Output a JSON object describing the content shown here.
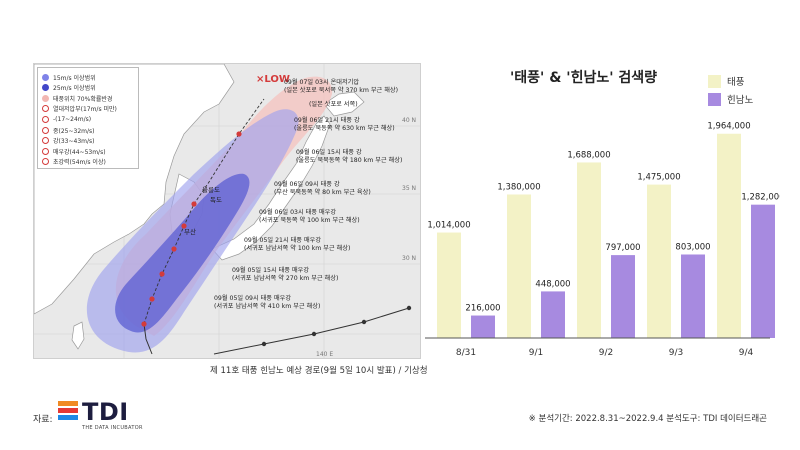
{
  "map": {
    "caption": "제 11호 태풍 힌남노 예상 경로(9월 5일 10시 발표) / 기상청",
    "legend": [
      {
        "label": "15m/s 이상범위",
        "swatch": "circle",
        "color": "#7f83e8"
      },
      {
        "label": "25m/s 이상범위",
        "swatch": "circle",
        "color": "#4247c8"
      },
      {
        "label": "태풍위치 70%확률반경",
        "swatch": "circle",
        "color": "#f2b7b2"
      },
      {
        "label": "열대저압부(17m/s 미만)",
        "swatch": "mark",
        "color": "#d43b3b"
      },
      {
        "label": "-(17~24m/s)",
        "swatch": "mark",
        "color": "#d43b3b"
      },
      {
        "label": "중(25~32m/s)",
        "swatch": "mark",
        "color": "#d43b3b"
      },
      {
        "label": "강(33~43m/s)",
        "swatch": "mark",
        "color": "#d43b3b"
      },
      {
        "label": "매우강(44~53m/s)",
        "swatch": "mark",
        "color": "#d43b3b"
      },
      {
        "label": "초강력(54m/s 이상)",
        "swatch": "mark",
        "color": "#d43b3b"
      }
    ],
    "tdlow_label": "×LOW",
    "place_labels": {
      "ulleungdo": "울릉도",
      "dokdo": "독도",
      "busan": "부산",
      "lat40": "40 N",
      "lat35": "35 N",
      "lat30": "30 N",
      "lon140": "140 E"
    },
    "forecast_points": [
      {
        "line1": "09월 07일 03시 온대저기압",
        "line2": "(일본 삿포로 북서쪽 약 370 km 부근 해상)",
        "strength": ""
      },
      {
        "line1": "(일본 삿포로 서쪽)",
        "line2": "",
        "strength": ""
      },
      {
        "line1": "09월 06일 21시 태풍 강",
        "line2": "(울릉도 북동쪽 약 630 km 부근 해상)",
        "strength": "강"
      },
      {
        "line1": "09월 06일 15시 태풍 강",
        "line2": "(울릉도 북북동쪽 약 180 km 부근 해상)",
        "strength": "강"
      },
      {
        "line1": "09월 06일 09시 태풍 강",
        "line2": "(부산 북북동쪽 약 80 km 부근 육상)",
        "strength": "강"
      },
      {
        "line1": "09월 06일 03시 태풍 매우강",
        "line2": "(서귀포 북동쪽 약 100 km 부근 해상)",
        "strength": "매우강"
      },
      {
        "line1": "09월 05일 21시 태풍 매우강",
        "line2": "(서귀포 남남서쪽 약 100 km 부근 해상)",
        "strength": "매우강"
      },
      {
        "line1": "09월 05일 15시 태풍 매우강",
        "line2": "(서귀포 남남서쪽 약 270 km 부근 해상)",
        "strength": "매우강"
      },
      {
        "line1": "09월 05일 09시 태풍 매우강",
        "line2": "(서귀포 남남서쪽 약 410 km 부근 해상)",
        "strength": "매우강"
      }
    ]
  },
  "chart_data": {
    "type": "bar",
    "title": "'태풍' & '힌남노' 검색량",
    "categories": [
      "8/31",
      "9/1",
      "9/2",
      "9/3",
      "9/4"
    ],
    "series": [
      {
        "name": "태풍",
        "color": "#f3f2c6",
        "values": [
          1014000,
          1380000,
          1688000,
          1475000,
          1964000
        ],
        "labels": [
          "1,014,000",
          "1,380,000",
          "1,688,000",
          "1,475,000",
          "1,964,000"
        ]
      },
      {
        "name": "힌남노",
        "color": "#a78ae0",
        "values": [
          216000,
          448000,
          797000,
          803000,
          1282000
        ],
        "labels": [
          "216,000",
          "448,000",
          "797,000",
          "803,000",
          "1,282,000"
        ]
      }
    ],
    "xlabel": "",
    "ylabel": "",
    "ylim": [
      0,
      2000000
    ],
    "grid": false,
    "legend_position": "top-right"
  },
  "footer": {
    "source_label": "자료:",
    "logo_text": "TDI",
    "logo_sub": "THE DATA INCUBATOR",
    "note": "※ 분석기간: 2022.8.31~2022.9.4   분석도구: TDI 데이터드래곤"
  }
}
